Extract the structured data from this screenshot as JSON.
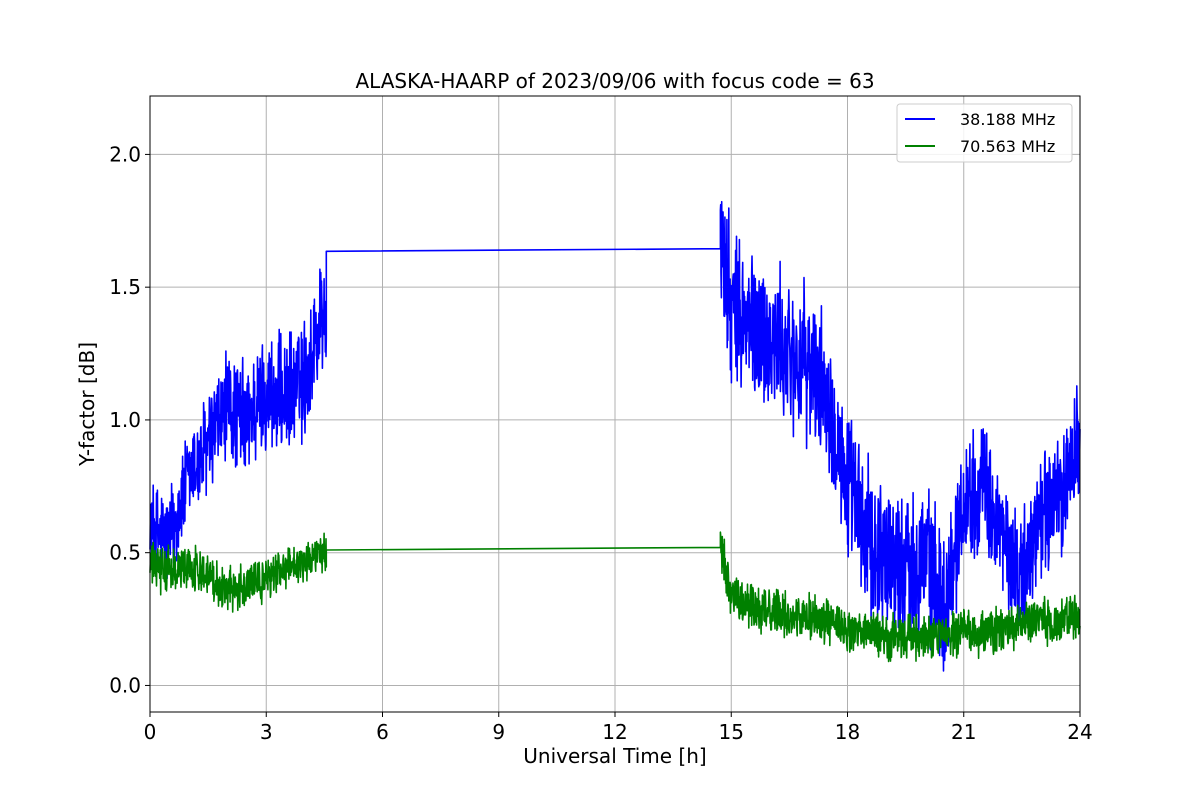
{
  "chart_data": {
    "type": "line",
    "title": "ALASKA-HAARP of 2023/09/06 with focus code = 63",
    "xlabel": "Universal Time [h]",
    "ylabel": "Y-factor [dB]",
    "xlim": [
      0,
      24
    ],
    "ylim": [
      -0.1,
      2.22
    ],
    "xticks": [
      0,
      3,
      6,
      9,
      12,
      15,
      18,
      21,
      24
    ],
    "yticks": [
      0.0,
      0.5,
      1.0,
      1.5,
      2.0
    ],
    "xtick_labels": [
      "0",
      "3",
      "6",
      "9",
      "12",
      "15",
      "18",
      "21",
      "24"
    ],
    "ytick_labels": [
      "0.0",
      "0.5",
      "1.0",
      "1.5",
      "2.0"
    ],
    "grid": true,
    "legend_position": "top-right",
    "series": [
      {
        "name": "38.188 MHz",
        "color": "#0000ff",
        "x": [
          0,
          0.5,
          1.0,
          1.5,
          2.0,
          2.5,
          3.0,
          3.5,
          4.0,
          4.45,
          14.75,
          15.0,
          15.5,
          16.0,
          16.5,
          17.0,
          17.5,
          18.0,
          18.5,
          19.0,
          19.5,
          20.0,
          20.5,
          21.0,
          21.5,
          22.0,
          22.5,
          23.0,
          23.5,
          24.0
        ],
        "y": [
          0.6,
          0.55,
          0.78,
          0.9,
          1.05,
          1.0,
          1.1,
          1.08,
          1.15,
          1.4,
          1.645,
          1.4,
          1.35,
          1.3,
          1.25,
          1.2,
          1.1,
          0.75,
          0.55,
          0.5,
          0.45,
          0.5,
          0.3,
          0.7,
          0.75,
          0.55,
          0.4,
          0.65,
          0.7,
          0.95
        ],
        "noise": [
          0.18,
          0.2,
          0.2,
          0.22,
          0.23,
          0.23,
          0.24,
          0.24,
          0.25,
          0.25,
          0.3,
          0.32,
          0.32,
          0.3,
          0.3,
          0.3,
          0.28,
          0.3,
          0.32,
          0.32,
          0.3,
          0.3,
          0.28,
          0.25,
          0.25,
          0.25,
          0.25,
          0.25,
          0.25,
          0.25
        ],
        "gap": [
          4.55,
          14.72
        ],
        "gap_y": [
          1.635,
          1.645
        ]
      },
      {
        "name": "70.563 MHz",
        "color": "#008000",
        "x": [
          0,
          0.5,
          1.0,
          1.5,
          2.0,
          2.5,
          3.0,
          3.5,
          4.0,
          4.45,
          14.75,
          15.0,
          15.5,
          16.0,
          16.5,
          17.0,
          17.5,
          18.0,
          18.5,
          19.0,
          19.5,
          20.0,
          20.5,
          21.0,
          21.5,
          22.0,
          22.5,
          23.0,
          23.5,
          24.0
        ],
        "y": [
          0.45,
          0.43,
          0.45,
          0.42,
          0.36,
          0.38,
          0.4,
          0.45,
          0.47,
          0.5,
          0.52,
          0.33,
          0.3,
          0.28,
          0.26,
          0.26,
          0.24,
          0.2,
          0.2,
          0.18,
          0.18,
          0.18,
          0.18,
          0.2,
          0.19,
          0.21,
          0.23,
          0.24,
          0.24,
          0.26
        ],
        "noise": [
          0.09,
          0.09,
          0.09,
          0.09,
          0.09,
          0.09,
          0.08,
          0.08,
          0.08,
          0.08,
          0.1,
          0.09,
          0.09,
          0.09,
          0.09,
          0.09,
          0.09,
          0.09,
          0.09,
          0.09,
          0.09,
          0.09,
          0.09,
          0.09,
          0.09,
          0.09,
          0.09,
          0.09,
          0.09,
          0.09
        ],
        "gap": [
          4.55,
          14.72
        ],
        "gap_y": [
          0.51,
          0.52
        ]
      }
    ]
  }
}
